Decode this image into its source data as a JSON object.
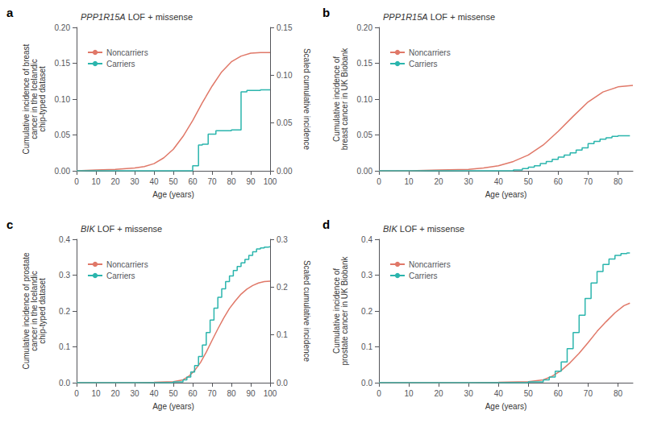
{
  "chart_data": [
    {
      "type": "line",
      "panel_label": "a",
      "title": "PPP1R15A LOF + missense",
      "xlabel": "Age (years)",
      "ylabel": "Cumulative incidence of breast\ncancer in the Icelandic\nchip-typed dataset",
      "y2label": "Scaled cumulative incidence",
      "xlim": [
        0,
        100
      ],
      "xticks": [
        0,
        10,
        20,
        30,
        40,
        50,
        60,
        70,
        80,
        90,
        100
      ],
      "ylim": [
        0,
        0.2
      ],
      "yticks": [
        {
          "value": 0,
          "label": "0.00"
        },
        {
          "value": 0.05,
          "label": "0.05"
        },
        {
          "value": 0.1,
          "label": "0.10"
        },
        {
          "value": 0.15,
          "label": "0.15"
        },
        {
          "value": 0.2,
          "label": "0.20"
        }
      ],
      "y2lim": [
        0,
        0.15
      ],
      "y2ticks": [
        {
          "value": 0,
          "label": "0.00"
        },
        {
          "value": 0.05,
          "label": "0.05"
        },
        {
          "value": 0.1,
          "label": "0.10"
        },
        {
          "value": 0.15,
          "label": "0.15"
        }
      ],
      "grid": false,
      "legend": "upper left",
      "series": [
        {
          "name": "Noncarriers",
          "type": "line",
          "color": "#E07868",
          "x": [
            0,
            10,
            20,
            30,
            35,
            40,
            45,
            50,
            55,
            60,
            65,
            70,
            75,
            80,
            85,
            90,
            95,
            100
          ],
          "values": [
            0,
            0.001,
            0.002,
            0.004,
            0.006,
            0.01,
            0.018,
            0.03,
            0.048,
            0.07,
            0.095,
            0.118,
            0.138,
            0.152,
            0.16,
            0.164,
            0.165,
            0.165
          ]
        },
        {
          "name": "Carriers",
          "type": "step",
          "color": "#2BB5AD",
          "x": [
            0,
            57,
            60,
            63,
            65,
            68,
            72,
            80,
            85,
            88,
            95,
            100
          ],
          "values": [
            0,
            0,
            0.007,
            0.036,
            0.037,
            0.051,
            0.056,
            0.057,
            0.11,
            0.112,
            0.113,
            0.113
          ]
        }
      ]
    },
    {
      "type": "line",
      "panel_label": "b",
      "title": "PPP1R15A LOF + missense",
      "xlabel": "Age (years)",
      "ylabel": "Cumulative incidence of\nbreast cancer in UK Biobank",
      "xlim": [
        0,
        85
      ],
      "xticks": [
        0,
        10,
        20,
        30,
        40,
        50,
        60,
        70,
        80
      ],
      "ylim": [
        0,
        0.2
      ],
      "yticks": [
        {
          "value": 0,
          "label": "0.00"
        },
        {
          "value": 0.05,
          "label": "0.05"
        },
        {
          "value": 0.1,
          "label": "0.10"
        },
        {
          "value": 0.15,
          "label": "0.15"
        },
        {
          "value": 0.2,
          "label": "0.20"
        }
      ],
      "grid": false,
      "legend": "upper left",
      "series": [
        {
          "name": "Noncarriers",
          "type": "line",
          "color": "#E07868",
          "x": [
            0,
            10,
            20,
            30,
            35,
            40,
            45,
            50,
            55,
            60,
            65,
            70,
            75,
            80,
            85
          ],
          "values": [
            0,
            0,
            0.001,
            0.002,
            0.004,
            0.007,
            0.013,
            0.022,
            0.036,
            0.055,
            0.076,
            0.096,
            0.11,
            0.117,
            0.119
          ]
        },
        {
          "name": "Carriers",
          "type": "step",
          "color": "#2BB5AD",
          "x": [
            0,
            40,
            45,
            48,
            50,
            52,
            54,
            56,
            58,
            60,
            62,
            64,
            66,
            68,
            70,
            72,
            74,
            76,
            78,
            80,
            82,
            84
          ],
          "values": [
            0,
            0,
            0.001,
            0.003,
            0.005,
            0.007,
            0.01,
            0.013,
            0.016,
            0.019,
            0.022,
            0.025,
            0.029,
            0.032,
            0.038,
            0.041,
            0.044,
            0.046,
            0.048,
            0.049,
            0.049,
            0.049
          ]
        }
      ]
    },
    {
      "type": "line",
      "panel_label": "c",
      "title": "BIK LOF + missense",
      "xlabel": "Age (years)",
      "ylabel": "Cumulative incidence of prostate\ncancer in the Icelandic\nchip-typed dataset",
      "y2label": "Scaled cumulative incidence",
      "xlim": [
        0,
        100
      ],
      "xticks": [
        0,
        10,
        20,
        30,
        40,
        50,
        60,
        70,
        80,
        90,
        100
      ],
      "ylim": [
        0,
        0.4
      ],
      "yticks": [
        {
          "value": 0,
          "label": "0.0"
        },
        {
          "value": 0.1,
          "label": "0.1"
        },
        {
          "value": 0.2,
          "label": "0.2"
        },
        {
          "value": 0.3,
          "label": "0.3"
        },
        {
          "value": 0.4,
          "label": "0.4"
        }
      ],
      "y2lim": [
        0,
        0.3
      ],
      "y2ticks": [
        {
          "value": 0,
          "label": "0.0"
        },
        {
          "value": 0.1,
          "label": "0.1"
        },
        {
          "value": 0.2,
          "label": "0.2"
        },
        {
          "value": 0.3,
          "label": "0.3"
        }
      ],
      "grid": false,
      "legend": "upper left",
      "series": [
        {
          "name": "Noncarriers",
          "type": "line",
          "color": "#E07868",
          "x": [
            0,
            10,
            20,
            30,
            40,
            50,
            55,
            58,
            61,
            64,
            67,
            70,
            73,
            76,
            79,
            82,
            85,
            88,
            91,
            94,
            97,
            100
          ],
          "values": [
            0,
            0,
            0,
            0,
            0.001,
            0.003,
            0.008,
            0.018,
            0.034,
            0.056,
            0.085,
            0.118,
            0.15,
            0.18,
            0.207,
            0.228,
            0.247,
            0.261,
            0.271,
            0.278,
            0.282,
            0.283
          ]
        },
        {
          "name": "Carriers",
          "type": "step",
          "color": "#2BB5AD",
          "x": [
            0,
            10,
            20,
            30,
            40,
            50,
            55,
            57,
            59,
            61,
            63,
            65,
            67,
            69,
            71,
            73,
            75,
            77,
            79,
            81,
            83,
            85,
            87,
            89,
            91,
            93,
            95,
            97,
            99,
            100
          ],
          "values": [
            0,
            0,
            0,
            0,
            0,
            0.002,
            0.008,
            0.016,
            0.03,
            0.048,
            0.073,
            0.105,
            0.14,
            0.175,
            0.208,
            0.238,
            0.262,
            0.282,
            0.298,
            0.313,
            0.324,
            0.334,
            0.344,
            0.355,
            0.365,
            0.373,
            0.376,
            0.378,
            0.379,
            0.379
          ]
        }
      ]
    },
    {
      "type": "line",
      "panel_label": "d",
      "title": "BIK LOF + missense",
      "xlabel": "Age (years)",
      "ylabel": "Cumulative incidence of\nprostate cancer in UK Biobank",
      "xlim": [
        0,
        85
      ],
      "xticks": [
        0,
        10,
        20,
        30,
        40,
        50,
        60,
        70,
        80
      ],
      "ylim": [
        0,
        0.4
      ],
      "yticks": [
        {
          "value": 0,
          "label": "0.0"
        },
        {
          "value": 0.1,
          "label": "0.1"
        },
        {
          "value": 0.2,
          "label": "0.2"
        },
        {
          "value": 0.3,
          "label": "0.3"
        },
        {
          "value": 0.4,
          "label": "0.4"
        }
      ],
      "grid": false,
      "legend": "upper left",
      "series": [
        {
          "name": "Noncarriers",
          "type": "line",
          "color": "#E07868",
          "x": [
            0,
            10,
            20,
            30,
            40,
            50,
            55,
            58,
            61,
            64,
            67,
            70,
            73,
            76,
            79,
            82,
            84
          ],
          "values": [
            0,
            0,
            0,
            0,
            0.001,
            0.003,
            0.008,
            0.018,
            0.034,
            0.056,
            0.082,
            0.112,
            0.143,
            0.17,
            0.195,
            0.215,
            0.222
          ]
        },
        {
          "name": "Carriers",
          "type": "step",
          "color": "#2BB5AD",
          "x": [
            0,
            10,
            20,
            30,
            40,
            50,
            55,
            57,
            59,
            61,
            63,
            65,
            67,
            69,
            71,
            73,
            75,
            77,
            79,
            81,
            83,
            84
          ],
          "values": [
            0,
            0,
            0,
            0,
            0,
            0.002,
            0.008,
            0.016,
            0.032,
            0.058,
            0.095,
            0.14,
            0.188,
            0.235,
            0.278,
            0.31,
            0.33,
            0.345,
            0.355,
            0.36,
            0.362,
            0.362
          ]
        }
      ]
    }
  ]
}
